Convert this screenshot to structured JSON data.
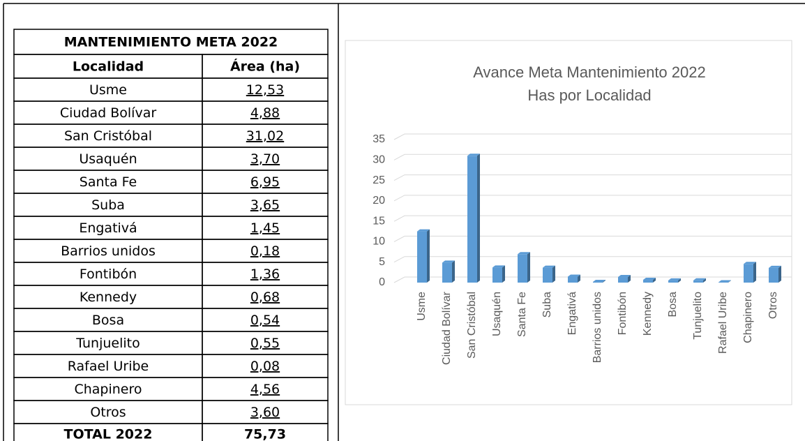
{
  "table": {
    "title": "MANTENIMIENTO META 2022",
    "header": [
      "Localidad",
      "Área (ha)"
    ],
    "rows": [
      [
        "Usme",
        "12,53"
      ],
      [
        "Ciudad Bolívar",
        "4,88"
      ],
      [
        "San Cristóbal",
        "31,02"
      ],
      [
        "Usaquén",
        "3,70"
      ],
      [
        "Santa Fe",
        "6,95"
      ],
      [
        "Suba",
        "3,65"
      ],
      [
        "Engativá",
        "1,45"
      ],
      [
        "Barrios unidos",
        "0,18"
      ],
      [
        "Fontibón",
        "1,36"
      ],
      [
        "Kennedy",
        "0,68"
      ],
      [
        "Bosa",
        "0,54"
      ],
      [
        "Tunjuelito",
        "0,55"
      ],
      [
        "Rafael Uribe",
        "0,08"
      ],
      [
        "Chapinero",
        "4,56"
      ],
      [
        "Otros",
        "3,60"
      ]
    ],
    "total": [
      "TOTAL 2022",
      "75,73"
    ]
  },
  "chart_data": {
    "type": "bar",
    "title": "Avance Meta Mantenimiento 2022",
    "subtitle": "Has por Localidad",
    "categories": [
      "Usme",
      "Ciudad Bolívar",
      "San Cristóbal",
      "Usaquén",
      "Santa Fe",
      "Suba",
      "Engativá",
      "Barrios unidos",
      "Fontibón",
      "Kennedy",
      "Bosa",
      "Tunjuelito",
      "Rafael Uribe",
      "Chapinero",
      "Otros"
    ],
    "values": [
      12.53,
      4.88,
      31.02,
      3.7,
      6.95,
      3.65,
      1.45,
      0.18,
      1.36,
      0.68,
      0.54,
      0.55,
      0.08,
      4.56,
      3.6
    ],
    "color": "#5b9bd5",
    "ylim": [
      0,
      35
    ],
    "yticks": [
      0,
      5,
      10,
      15,
      20,
      25,
      30,
      35
    ],
    "grid": true
  }
}
